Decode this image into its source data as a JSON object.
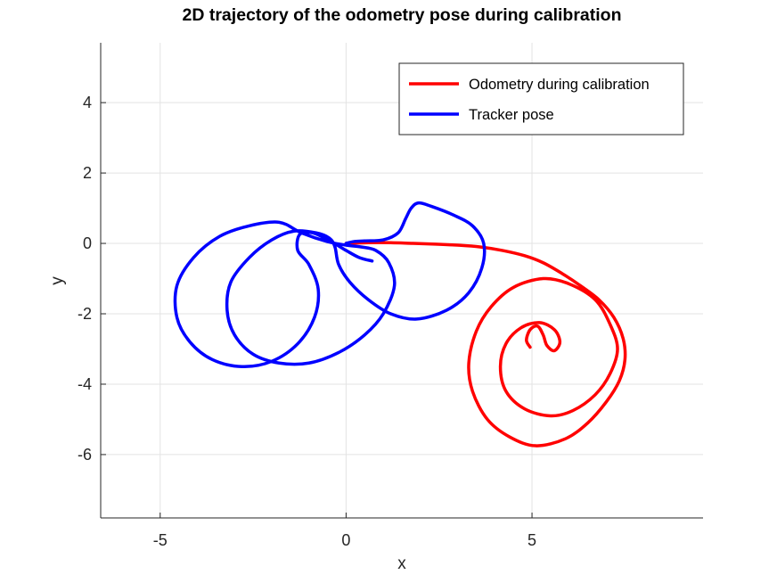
{
  "chart_data": {
    "type": "line",
    "title": "2D trajectory of the odometry pose during calibration",
    "xlabel": "x",
    "ylabel": "y",
    "xlim": [
      -6.6,
      9.6
    ],
    "ylim": [
      -7.8,
      5.7
    ],
    "xticks": [
      -5,
      0,
      5
    ],
    "yticks": [
      -6,
      -4,
      -2,
      0,
      2,
      4
    ],
    "grid": true,
    "legend_position": "top-right",
    "series": [
      {
        "name": "Odometry during calibration",
        "color": "#ff0000",
        "points": [
          [
            0.0,
            0.0
          ],
          [
            0.6,
            0.02
          ],
          [
            1.2,
            0.02
          ],
          [
            1.8,
            0.0
          ],
          [
            2.4,
            -0.02
          ],
          [
            3.0,
            -0.05
          ],
          [
            3.6,
            -0.1
          ],
          [
            4.2,
            -0.2
          ],
          [
            4.8,
            -0.35
          ],
          [
            5.3,
            -0.55
          ],
          [
            5.8,
            -0.85
          ],
          [
            6.3,
            -1.2
          ],
          [
            6.8,
            -1.6
          ],
          [
            7.2,
            -2.1
          ],
          [
            7.45,
            -2.7
          ],
          [
            7.5,
            -3.3
          ],
          [
            7.35,
            -3.9
          ],
          [
            7.0,
            -4.5
          ],
          [
            6.5,
            -5.1
          ],
          [
            5.9,
            -5.55
          ],
          [
            5.1,
            -5.75
          ],
          [
            4.4,
            -5.5
          ],
          [
            3.8,
            -5.0
          ],
          [
            3.4,
            -4.2
          ],
          [
            3.3,
            -3.4
          ],
          [
            3.5,
            -2.5
          ],
          [
            3.9,
            -1.8
          ],
          [
            4.5,
            -1.25
          ],
          [
            5.3,
            -1.0
          ],
          [
            6.0,
            -1.15
          ],
          [
            6.7,
            -1.6
          ],
          [
            7.1,
            -2.3
          ],
          [
            7.3,
            -3.0
          ],
          [
            7.1,
            -3.7
          ],
          [
            6.7,
            -4.3
          ],
          [
            6.1,
            -4.75
          ],
          [
            5.5,
            -4.9
          ],
          [
            4.8,
            -4.7
          ],
          [
            4.3,
            -4.2
          ],
          [
            4.15,
            -3.5
          ],
          [
            4.3,
            -2.85
          ],
          [
            4.7,
            -2.4
          ],
          [
            5.2,
            -2.25
          ],
          [
            5.6,
            -2.45
          ],
          [
            5.75,
            -2.8
          ],
          [
            5.6,
            -3.05
          ],
          [
            5.4,
            -2.9
          ],
          [
            5.3,
            -2.6
          ],
          [
            5.15,
            -2.35
          ],
          [
            4.95,
            -2.45
          ],
          [
            4.85,
            -2.75
          ],
          [
            4.95,
            -2.95
          ]
        ]
      },
      {
        "name": "Tracker pose",
        "color": "#0000ff",
        "points": [
          [
            0.0,
            0.0
          ],
          [
            0.2,
            0.05
          ],
          [
            0.5,
            0.07
          ],
          [
            1.0,
            0.1
          ],
          [
            1.4,
            0.3
          ],
          [
            1.6,
            0.7
          ],
          [
            1.75,
            1.0
          ],
          [
            1.95,
            1.15
          ],
          [
            2.3,
            1.05
          ],
          [
            2.9,
            0.8
          ],
          [
            3.4,
            0.5
          ],
          [
            3.7,
            0.0
          ],
          [
            3.65,
            -0.7
          ],
          [
            3.3,
            -1.4
          ],
          [
            2.7,
            -1.9
          ],
          [
            1.9,
            -2.15
          ],
          [
            1.2,
            -2.0
          ],
          [
            0.6,
            -1.6
          ],
          [
            0.1,
            -1.1
          ],
          [
            -0.2,
            -0.6
          ],
          [
            -0.3,
            -0.1
          ],
          [
            -0.45,
            0.15
          ],
          [
            -0.8,
            0.3
          ],
          [
            -1.4,
            0.35
          ],
          [
            -2.0,
            0.1
          ],
          [
            -2.6,
            -0.4
          ],
          [
            -3.1,
            -1.1
          ],
          [
            -3.2,
            -1.9
          ],
          [
            -3.0,
            -2.6
          ],
          [
            -2.5,
            -3.15
          ],
          [
            -1.8,
            -3.4
          ],
          [
            -1.0,
            -3.4
          ],
          [
            -0.2,
            -3.1
          ],
          [
            0.5,
            -2.6
          ],
          [
            1.0,
            -2.0
          ],
          [
            1.3,
            -1.2
          ],
          [
            1.15,
            -0.55
          ],
          [
            0.8,
            -0.2
          ],
          [
            0.4,
            -0.1
          ],
          [
            0.0,
            -0.05
          ],
          [
            -0.5,
            0.05
          ],
          [
            -1.2,
            0.3
          ],
          [
            -1.8,
            0.6
          ],
          [
            -2.6,
            0.5
          ],
          [
            -3.4,
            0.2
          ],
          [
            -4.1,
            -0.4
          ],
          [
            -4.55,
            -1.2
          ],
          [
            -4.55,
            -2.1
          ],
          [
            -4.2,
            -2.8
          ],
          [
            -3.6,
            -3.3
          ],
          [
            -2.8,
            -3.5
          ],
          [
            -2.0,
            -3.35
          ],
          [
            -1.3,
            -2.85
          ],
          [
            -0.85,
            -2.1
          ],
          [
            -0.75,
            -1.3
          ],
          [
            -1.0,
            -0.6
          ],
          [
            -1.3,
            -0.2
          ],
          [
            -1.25,
            0.25
          ],
          [
            -0.9,
            0.3
          ],
          [
            -0.4,
            0.05
          ],
          [
            0.0,
            -0.2
          ],
          [
            0.35,
            -0.4
          ],
          [
            0.7,
            -0.5
          ]
        ]
      }
    ]
  }
}
